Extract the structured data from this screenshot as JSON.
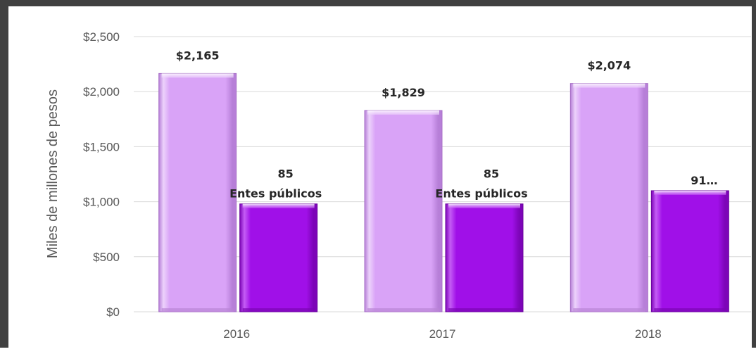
{
  "chart_data": {
    "type": "bar",
    "title": "",
    "xlabel": "",
    "ylabel": "Miles de millones de pesos",
    "categories": [
      "2016",
      "2017",
      "2018"
    ],
    "ylim": [
      0,
      2500
    ],
    "yticks": [
      0,
      500,
      1000,
      1500,
      2000,
      2500
    ],
    "ytick_labels": [
      "$0",
      "$500",
      "$1,000",
      "$1,500",
      "$2,000",
      "$2,500"
    ],
    "grid": true,
    "legend": "none",
    "series": [
      {
        "values": [
          2165,
          1829,
          2074
        ],
        "data_labels": [
          "$2,165",
          "$1,829",
          "$2,074"
        ],
        "color": "#d9a3f7"
      },
      {
        "values": [
          980,
          980,
          1100
        ],
        "data_labels": [
          [
            "85",
            "Entes públicos"
          ],
          [
            "85",
            "Entes públicos"
          ],
          [
            "91…"
          ]
        ],
        "color": "#a010e8"
      }
    ]
  }
}
